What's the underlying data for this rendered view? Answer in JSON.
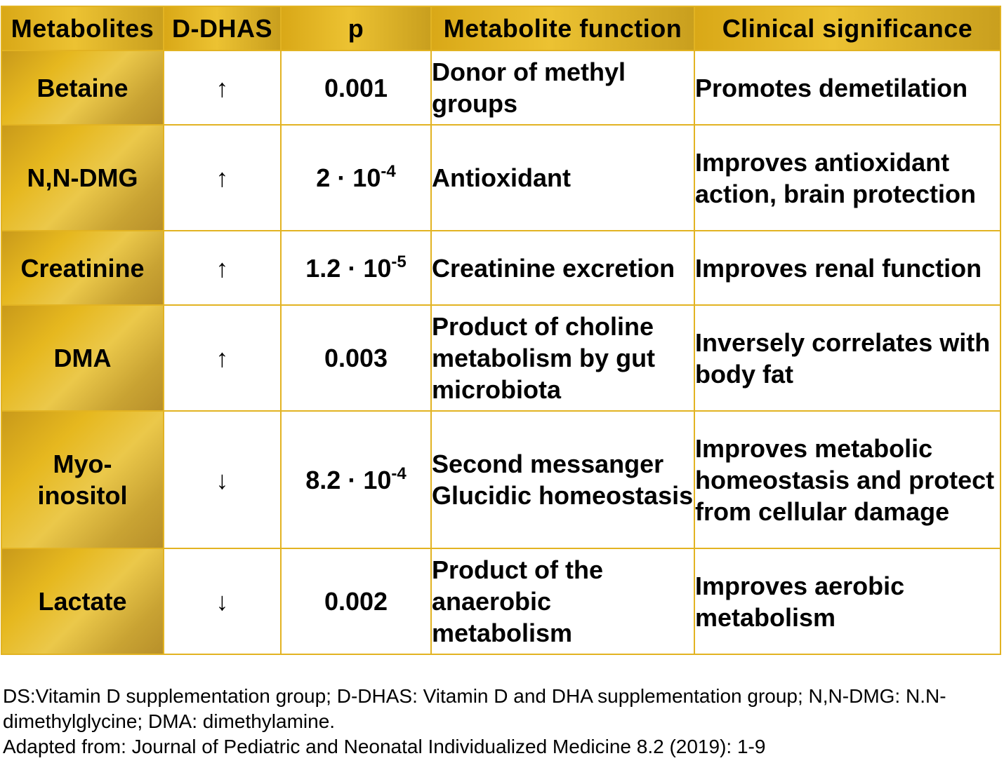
{
  "table": {
    "headers": [
      "Metabolites",
      "D-DHAS",
      "p",
      "Metabolite function",
      "Clinical significance"
    ],
    "rows": [
      {
        "metabolite": "Betaine",
        "direction": "↑",
        "p_base": "0.001",
        "p_exp": "",
        "function": "Donor of methyl groups",
        "clinical": "Promotes demetilation"
      },
      {
        "metabolite": "N,N-DMG",
        "direction": "↑",
        "p_base": "2 · 10",
        "p_exp": "-4",
        "function": "Antioxidant",
        "clinical": "Improves antioxidant action, brain protection"
      },
      {
        "metabolite": "Creatinine",
        "direction": "↑",
        "p_base": "1.2 · 10",
        "p_exp": "-5",
        "function": "Creatinine excretion",
        "clinical": "Improves renal function"
      },
      {
        "metabolite": "DMA",
        "direction": "↑",
        "p_base": "0.003",
        "p_exp": "",
        "function": "Product of choline metabolism by gut microbiota",
        "clinical": "Inversely correlates with body fat"
      },
      {
        "metabolite": "Myo-inositol",
        "direction": "↓",
        "p_base": "8.2 · 10",
        "p_exp": "-4",
        "function": "Second messanger Glucidic homeostasis",
        "clinical": "Improves metabolic homeostasis and protect from cellular damage"
      },
      {
        "metabolite": "Lactate",
        "direction": "↓",
        "p_base": "0.002",
        "p_exp": "",
        "function": "Product of the anaerobic metabolism",
        "clinical": "Improves aerobic metabolism"
      }
    ]
  },
  "footnote": {
    "line1": "DS:Vitamin D supplementation group; D-DHAS: Vitamin D and DHA supplementation group; N,N-DMG: N.N-dimethylglycine; DMA: dimethylamine.",
    "line2": "Adapted from: Journal of Pediatric and Neonatal Individualized Medicine 8.2 (2019): 1-9"
  },
  "colors": {
    "gold": "#e2b322",
    "header_text": "#ffffff"
  }
}
